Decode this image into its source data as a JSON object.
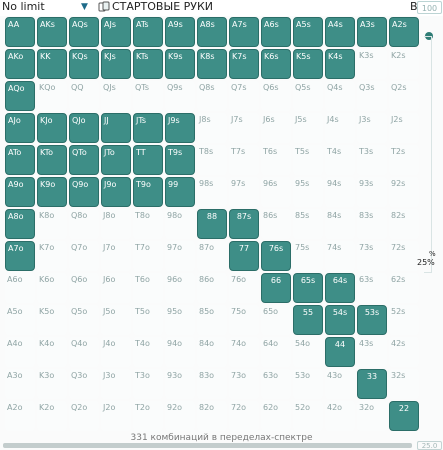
{
  "header": {
    "limit_label": "No limit",
    "strategy_label": "СТАРТОВЫЕ РУКИ",
    "weight_label": "ВЕС:",
    "zoom_label": "100"
  },
  "ranks": [
    "A",
    "K",
    "Q",
    "J",
    "T",
    "9",
    "8",
    "7",
    "6",
    "5",
    "4",
    "3",
    "2"
  ],
  "grid": {
    "rows": [
      {
        "sel": 13,
        "solid": []
      },
      {
        "sel": 11,
        "solid": []
      },
      {
        "sel": 1,
        "solid": []
      },
      {
        "sel": 6,
        "solid": []
      },
      {
        "sel": 6,
        "solid": []
      },
      {
        "sel": 6,
        "solid": []
      },
      {
        "sel": 1,
        "solid": [
          6,
          7
        ]
      },
      {
        "sel": 1,
        "solid": [
          7,
          8
        ]
      },
      {
        "sel": 0,
        "solid": [
          8,
          9,
          10
        ]
      },
      {
        "sel": 0,
        "solid": [
          9,
          10,
          11
        ]
      },
      {
        "sel": 0,
        "solid": [
          10
        ]
      },
      {
        "sel": 0,
        "solid": [
          11
        ]
      },
      {
        "sel": 0,
        "solid": [
          12
        ]
      }
    ]
  },
  "side": {
    "percent_top": "%",
    "percent_value": "25%"
  },
  "footer": {
    "status_text": "331 комбинаций в переделах-спектре",
    "zoom_label": "25.0"
  }
}
